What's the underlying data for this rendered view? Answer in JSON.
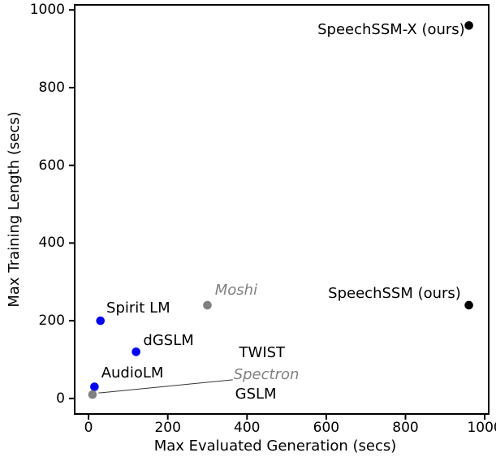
{
  "chart_data": {
    "type": "scatter",
    "title": "",
    "xlabel": "Max Evaluated Generation (secs)",
    "ylabel": "Max Training Length (secs)",
    "xlim": [
      -35,
      1010
    ],
    "ylim": [
      -40,
      1013
    ],
    "xticks": [
      0,
      200,
      400,
      600,
      800,
      1000
    ],
    "yticks": [
      0,
      200,
      400,
      600,
      800,
      1000
    ],
    "grid": false,
    "legend": "none",
    "colors": {
      "ours": "#000000",
      "open_weight": "#0000ee",
      "closed_or_gray": "#808080",
      "spine": "#000000",
      "leader_line": "#333333"
    },
    "points": [
      {
        "name": "SpeechSSM-X (ours)",
        "x": 960,
        "y": 960,
        "color": "#000000"
      },
      {
        "name": "SpeechSSM (ours)",
        "x": 960,
        "y": 240,
        "color": "#000000"
      },
      {
        "name": "Moshi",
        "x": 300,
        "y": 240,
        "color": "#808080"
      },
      {
        "name": "Spirit LM",
        "x": 30,
        "y": 200,
        "color": "#0000ee"
      },
      {
        "name": "dGSLM",
        "x": 120,
        "y": 120,
        "color": "#0000ee"
      },
      {
        "name": "AudioLM",
        "x": 15,
        "y": 30,
        "color": "#0000ee"
      },
      {
        "name": "GSLM / TWIST / Spectron",
        "x": 10,
        "y": 10,
        "color": "#808080"
      }
    ],
    "annotations": [
      {
        "text": "SpeechSSM-X (ours)",
        "x": 950,
        "y": 949,
        "ha": "right",
        "color": "#000000",
        "italic": false
      },
      {
        "text": "SpeechSSM (ours)",
        "x": 940,
        "y": 270,
        "ha": "right",
        "color": "#000000",
        "italic": false
      },
      {
        "text": "Moshi",
        "x": 319,
        "y": 278,
        "ha": "left",
        "color": "#808080",
        "italic": true
      },
      {
        "text": "Spirit LM",
        "x": 45,
        "y": 232,
        "ha": "left",
        "color": "#000000",
        "italic": false
      },
      {
        "text": "dGSLM",
        "x": 138,
        "y": 148,
        "ha": "left",
        "color": "#000000",
        "italic": false
      },
      {
        "text": "AudioLM",
        "x": 32,
        "y": 65,
        "ha": "left",
        "color": "#000000",
        "italic": false
      },
      {
        "text": "TWIST",
        "x": 380,
        "y": 116,
        "ha": "left",
        "color": "#000000",
        "italic": false
      },
      {
        "text": "Spectron",
        "x": 366,
        "y": 61,
        "ha": "left",
        "color": "#808080",
        "italic": true
      },
      {
        "text": "GSLM",
        "x": 370,
        "y": 11,
        "ha": "left",
        "color": "#000000",
        "italic": false
      }
    ],
    "leader_line": {
      "x1": 25,
      "y1": 14,
      "x2": 364,
      "y2": 48,
      "color": "#333333"
    }
  }
}
